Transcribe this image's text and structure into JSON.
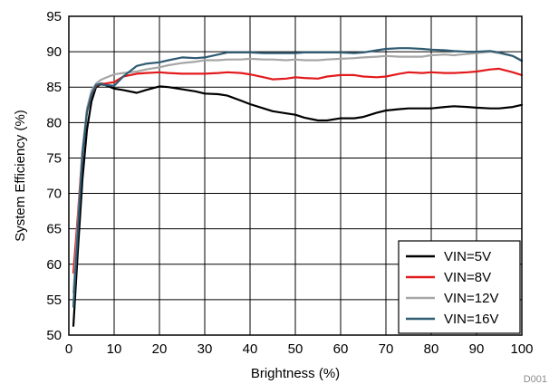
{
  "chart_data": {
    "type": "line",
    "title": "",
    "xlabel": "Brightness (%)",
    "ylabel": "System Efficiency (%)",
    "xlim": [
      0,
      100
    ],
    "ylim": [
      50,
      95
    ],
    "xticks": [
      0,
      10,
      20,
      30,
      40,
      50,
      60,
      70,
      80,
      90,
      100
    ],
    "yticks": [
      50,
      55,
      60,
      65,
      70,
      75,
      80,
      85,
      90,
      95
    ],
    "grid": true,
    "legend_position": "bottom-right",
    "figure_id": "D001",
    "series": [
      {
        "name": "VIN=5V",
        "color": "#000000",
        "x": [
          1,
          2,
          3,
          4,
          5,
          6,
          7,
          8,
          10,
          12,
          15,
          17,
          20,
          22,
          25,
          28,
          30,
          33,
          35,
          38,
          40,
          43,
          45,
          48,
          50,
          52,
          55,
          57,
          60,
          63,
          65,
          68,
          70,
          73,
          75,
          78,
          80,
          83,
          85,
          88,
          90,
          93,
          95,
          98,
          100
        ],
        "y": [
          51.3,
          62.0,
          72.0,
          79.0,
          83.0,
          85.0,
          85.4,
          85.3,
          84.8,
          84.6,
          84.2,
          84.6,
          85.1,
          85.0,
          84.7,
          84.4,
          84.1,
          84.0,
          83.8,
          83.1,
          82.6,
          82.0,
          81.6,
          81.3,
          81.1,
          80.7,
          80.3,
          80.3,
          80.6,
          80.6,
          80.8,
          81.4,
          81.7,
          81.9,
          82.0,
          82.0,
          82.0,
          82.2,
          82.3,
          82.2,
          82.1,
          82.0,
          82.0,
          82.2,
          82.5
        ]
      },
      {
        "name": "VIN=8V",
        "color": "#e31a1c",
        "x": [
          1,
          2,
          3,
          4,
          5,
          6,
          7,
          8,
          10,
          12,
          15,
          17,
          20,
          22,
          25,
          28,
          30,
          33,
          35,
          38,
          40,
          43,
          45,
          48,
          50,
          52,
          55,
          57,
          60,
          63,
          65,
          68,
          70,
          73,
          75,
          78,
          80,
          83,
          85,
          88,
          90,
          93,
          95,
          98,
          100
        ],
        "y": [
          58.8,
          67.0,
          76.0,
          81.5,
          84.0,
          85.2,
          85.5,
          85.5,
          85.7,
          86.5,
          86.9,
          87.0,
          87.1,
          87.0,
          86.9,
          86.9,
          86.9,
          87.0,
          87.1,
          87.0,
          86.8,
          86.4,
          86.1,
          86.2,
          86.4,
          86.3,
          86.2,
          86.5,
          86.7,
          86.7,
          86.5,
          86.4,
          86.5,
          86.9,
          87.1,
          87.0,
          87.1,
          87.0,
          87.0,
          87.1,
          87.2,
          87.5,
          87.6,
          87.1,
          86.7
        ]
      },
      {
        "name": "VIN=12V",
        "color": "#a6a6a6",
        "x": [
          1,
          2,
          3,
          4,
          5,
          6,
          7,
          8,
          10,
          12,
          15,
          17,
          20,
          22,
          25,
          28,
          30,
          33,
          35,
          38,
          40,
          43,
          45,
          48,
          50,
          52,
          55,
          57,
          60,
          63,
          65,
          68,
          70,
          73,
          75,
          78,
          80,
          83,
          85,
          88,
          90,
          93,
          95,
          98,
          100
        ],
        "y": [
          56.0,
          66.0,
          76.0,
          82.0,
          84.5,
          85.5,
          86.0,
          86.3,
          86.8,
          87.0,
          87.2,
          87.5,
          87.8,
          88.1,
          88.4,
          88.6,
          88.8,
          88.8,
          88.9,
          88.9,
          89.0,
          88.9,
          88.9,
          88.8,
          88.9,
          88.8,
          88.8,
          88.9,
          89.0,
          89.1,
          89.2,
          89.3,
          89.4,
          89.3,
          89.3,
          89.3,
          89.5,
          89.6,
          89.5,
          89.7,
          89.8,
          90.0,
          89.8,
          89.4,
          88.8
        ]
      },
      {
        "name": "VIN=16V",
        "color": "#2f5b73",
        "x": [
          1,
          2,
          3,
          4,
          5,
          6,
          7,
          8,
          10,
          12,
          15,
          17,
          20,
          22,
          25,
          28,
          30,
          33,
          35,
          38,
          40,
          43,
          45,
          48,
          50,
          52,
          55,
          57,
          60,
          63,
          65,
          68,
          70,
          73,
          75,
          78,
          80,
          83,
          85,
          88,
          90,
          93,
          95,
          98,
          100
        ],
        "y": [
          54.0,
          65.0,
          75.5,
          81.5,
          84.0,
          85.3,
          85.5,
          85.3,
          85.2,
          86.5,
          88.0,
          88.3,
          88.5,
          88.8,
          89.2,
          89.1,
          89.2,
          89.6,
          89.9,
          89.9,
          89.9,
          89.8,
          89.8,
          89.8,
          89.8,
          89.9,
          89.9,
          89.9,
          89.9,
          89.8,
          89.9,
          90.2,
          90.4,
          90.5,
          90.5,
          90.4,
          90.3,
          90.2,
          90.1,
          90.0,
          90.0,
          90.1,
          89.9,
          89.4,
          88.7
        ]
      }
    ]
  }
}
